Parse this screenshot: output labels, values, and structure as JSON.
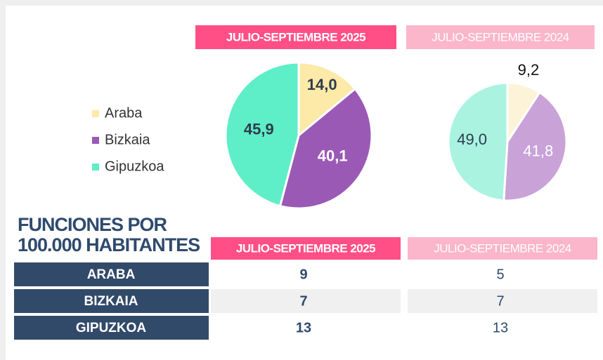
{
  "chart_data": [
    {
      "type": "pie",
      "title": "JULIO-SEPTIEMBRE 2025",
      "categories": [
        "Araba",
        "Bizkaia",
        "Gipuzkoa"
      ],
      "values": [
        14.0,
        40.1,
        45.9
      ],
      "value_labels": [
        "14,0",
        "40,1",
        "45,9"
      ],
      "colors": [
        "#fde9a8",
        "#9b59b6",
        "#5eeec8"
      ]
    },
    {
      "type": "pie",
      "title": "JULIO-SEPTIEMBRE 2024",
      "values": [
        9.2,
        41.8,
        49.0
      ],
      "value_labels": [
        "9,2",
        "41,8",
        "49,0"
      ],
      "colors": [
        "#fdf3d8",
        "#c9a2d8",
        "#a9f3e0"
      ]
    }
  ],
  "table": {
    "title": "FUNCIONES POR 100.000 HABITANTES",
    "columns": [
      "JULIO-SEPTIEMBRE 2025",
      "JULIO-SEPTIEMBRE 2024"
    ],
    "rows": [
      [
        "ARABA",
        9,
        5
      ],
      [
        "BIZKAIA",
        7,
        7
      ],
      [
        "GIPUZKOA",
        13,
        13
      ]
    ]
  }
}
